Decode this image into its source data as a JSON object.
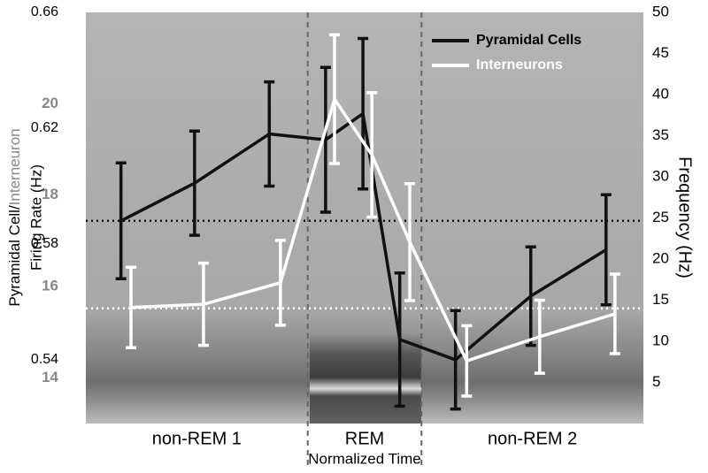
{
  "chart_data": {
    "type": "line",
    "ylabel": "Pyramidal Cell/",
    "y3label": "Interneuron",
    "ylabel_line2": "Firing Rate (Hz)",
    "y2label": "Frequency (Hz)",
    "xlabel": "Normalized Time",
    "phases": [
      "non-REM 1",
      "REM",
      "non-REM 2"
    ],
    "phase_boundaries": [
      0.398,
      0.602
    ],
    "xlim": [
      0,
      1
    ],
    "ylim": [
      0.518,
      0.66
    ],
    "yticks": [
      0.54,
      0.58,
      0.62,
      0.66
    ],
    "ycolor": "#000000",
    "y3lim": [
      13,
      22
    ],
    "y3ticks": [
      14,
      16,
      18,
      20
    ],
    "y3color": "#888888",
    "y2lim": [
      0,
      50
    ],
    "y2ticks": [
      5,
      10,
      15,
      20,
      25,
      30,
      35,
      40,
      45,
      50
    ],
    "series": [
      {
        "name": "Pyramidal Cells",
        "color": "#111111",
        "axis": "y",
        "x": [
          0.063,
          0.195,
          0.329,
          0.43,
          0.497,
          0.563,
          0.663,
          0.798,
          0.933
        ],
        "values": [
          0.588,
          0.601,
          0.618,
          0.616,
          0.625,
          0.547,
          0.54,
          0.562,
          0.578
        ],
        "errors": [
          0.02,
          0.018,
          0.018,
          0.025,
          0.026,
          0.023,
          0.017,
          0.017,
          0.019
        ],
        "reference": 0.588
      },
      {
        "name": "Interneurons",
        "color": "#ffffff",
        "axis": "y3",
        "x": [
          0.081,
          0.211,
          0.349,
          0.446,
          0.513,
          0.581,
          0.683,
          0.814,
          0.949
        ],
        "values": [
          15.54,
          15.61,
          16.08,
          20.1,
          18.88,
          16.97,
          14.37,
          14.9,
          15.4
        ],
        "errors": [
          0.88,
          0.9,
          0.93,
          1.41,
          1.36,
          1.28,
          0.77,
          0.8,
          0.87
        ],
        "reference": 15.52
      }
    ],
    "legend": "top-right"
  }
}
